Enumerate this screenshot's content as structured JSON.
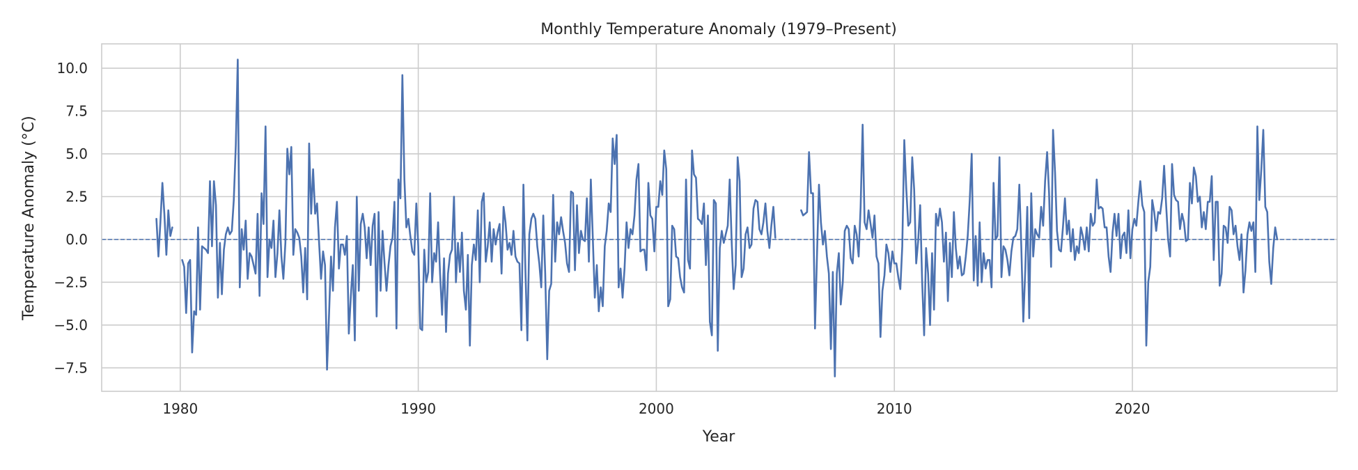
{
  "chart_data": {
    "type": "line",
    "title": "Monthly Temperature Anomaly (1979–Present)",
    "xlabel": "Year",
    "ylabel": "Temperature Anomaly (°C)",
    "xlim": [
      1976.7,
      2028.6
    ],
    "ylim": [
      -8.87,
      11.42
    ],
    "xticks": [
      1980,
      1990,
      2000,
      2010,
      2020
    ],
    "xtick_labels": [
      "1980",
      "1990",
      "2000",
      "2010",
      "2020"
    ],
    "yticks": [
      -7.5,
      -5.0,
      -2.5,
      0.0,
      2.5,
      5.0,
      7.5,
      10.0
    ],
    "ytick_labels": [
      "−7.5",
      "−5.0",
      "−2.5",
      "0.0",
      "2.5",
      "5.0",
      "7.5",
      "10.0"
    ],
    "grid": true,
    "reference_line": {
      "y": 0,
      "style": "dashed"
    },
    "line_color": "#4c72b0",
    "grid_color": "#cccccc",
    "start_year": 1979,
    "frequency": "monthly",
    "values_by_year": {
      "1979": [
        1.2,
        -1.0,
        1.0,
        3.3,
        1.5,
        -0.9,
        1.7,
        0.2,
        0.7,
        null,
        null,
        null
      ],
      "1980": [
        null,
        -1.2,
        -1.6,
        -4.3,
        -1.4,
        -1.2,
        -6.6,
        -4.2,
        -4.4,
        0.7,
        -4.1,
        -0.4
      ],
      "1981": [
        -0.5,
        -0.6,
        -0.8,
        3.4,
        -0.4,
        3.4,
        2.0,
        -3.4,
        -0.2,
        -3.2,
        -0.6,
        0.3
      ],
      "1982": [
        0.7,
        0.3,
        0.5,
        2.3,
        5.5,
        10.5,
        -2.8,
        0.6,
        -0.6,
        1.1,
        -2.3,
        -0.8
      ],
      "1983": [
        -1.0,
        -1.5,
        -2.0,
        1.5,
        -3.3,
        2.7,
        0.9,
        6.6,
        -2.2,
        0.0,
        -0.5,
        1.1
      ],
      "1984": [
        -2.2,
        -0.8,
        1.7,
        -1.0,
        -2.3,
        -0.2,
        5.3,
        3.8,
        5.4,
        -0.9,
        0.6,
        0.4
      ],
      "1985": [
        0.1,
        -1.0,
        -3.1,
        -0.5,
        -3.5,
        5.6,
        1.5,
        4.1,
        1.5,
        2.1,
        -0.2,
        -2.3
      ],
      "1986": [
        -0.7,
        -1.5,
        -7.6,
        -4.5,
        -1.0,
        -3.0,
        0.7,
        2.2,
        -1.7,
        -0.3,
        -0.3,
        -0.9
      ],
      "1987": [
        0.2,
        -5.5,
        -3.3,
        -1.5,
        -5.9,
        2.5,
        -3.0,
        0.9,
        1.5,
        0.7,
        -1.1,
        0.7
      ],
      "1988": [
        -1.5,
        0.8,
        1.5,
        -4.5,
        1.6,
        -3.0,
        0.5,
        -1.4,
        -3.0,
        -1.5,
        -0.4,
        0.1
      ],
      "1989": [
        2.2,
        -5.2,
        3.5,
        2.4,
        9.6,
        3.5,
        0.7,
        1.2,
        0.2,
        -0.7,
        -0.9,
        2.1
      ],
      "1990": [
        -0.4,
        -5.2,
        -5.3,
        -0.6,
        -2.5,
        -1.9,
        2.7,
        -2.5,
        -0.8,
        -1.3,
        1.0,
        -2.0
      ],
      "1991": [
        -4.4,
        -1.1,
        -5.4,
        -2.0,
        -0.9,
        -0.6,
        2.5,
        -2.5,
        -0.2,
        -1.9,
        0.4,
        -3.0
      ],
      "1992": [
        -4.1,
        -0.9,
        -6.2,
        -1.5,
        -0.3,
        -1.2,
        1.7,
        -2.5,
        2.2,
        2.7,
        -1.3,
        -0.4
      ],
      "1993": [
        1.0,
        -1.3,
        0.6,
        -0.3,
        0.4,
        0.9,
        -2.0,
        1.9,
        1.0,
        -0.6,
        -0.2,
        -0.9
      ],
      "1994": [
        0.5,
        -1.0,
        -1.3,
        -1.4,
        -5.3,
        3.2,
        -1.7,
        -5.9,
        0.3,
        1.2,
        1.5,
        1.2
      ],
      "1995": [
        -0.4,
        -1.4,
        -2.8,
        1.4,
        -2.0,
        -7.0,
        -3.0,
        -2.6,
        2.6,
        -1.3,
        1.0,
        0.3
      ],
      "1996": [
        1.3,
        0.5,
        -0.2,
        -1.4,
        -1.9,
        2.8,
        2.7,
        -1.8,
        2.0,
        -0.8,
        0.5,
        0.0
      ],
      "1997": [
        -0.1,
        2.4,
        -1.3,
        3.5,
        0.0,
        -3.4,
        -1.5,
        -4.2,
        -2.8,
        -3.9,
        -0.4,
        0.5
      ],
      "1998": [
        2.1,
        1.6,
        5.9,
        4.4,
        6.1,
        -2.8,
        -1.7,
        -3.4,
        -1.7,
        1.0,
        -0.5,
        0.6
      ],
      "1999": [
        0.3,
        1.4,
        3.5,
        4.4,
        -0.7,
        -0.6,
        -0.6,
        -1.8,
        3.3,
        1.4,
        1.2,
        -0.7
      ],
      "2000": [
        1.9,
        1.9,
        3.4,
        2.6,
        5.2,
        4.1,
        -3.9,
        -3.5,
        0.8,
        0.6,
        -1.0,
        -1.1
      ],
      "2001": [
        -2.2,
        -2.8,
        -3.1,
        3.5,
        -1.2,
        -1.7,
        5.2,
        3.8,
        3.6,
        1.2,
        1.1,
        0.9
      ],
      "2002": [
        2.1,
        -1.5,
        1.4,
        -4.8,
        -5.6,
        2.3,
        2.1,
        -6.5,
        -0.5,
        0.5,
        -0.2,
        0.3
      ],
      "2003": [
        0.8,
        3.5,
        -0.2,
        -2.9,
        -1.5,
        4.8,
        3.4,
        -2.2,
        -1.7,
        0.3,
        0.7,
        -0.5
      ],
      "2004": [
        -0.3,
        1.8,
        2.3,
        2.2,
        0.6,
        0.3,
        1.0,
        2.1,
        0.5,
        -0.5,
        0.8,
        1.9
      ],
      "2005": [
        0.1,
        null,
        null,
        null,
        null,
        null,
        null,
        null,
        null,
        null,
        null,
        null
      ],
      "2006": [
        null,
        1.7,
        1.4,
        1.5,
        1.6,
        5.1,
        2.7,
        2.7,
        -5.2,
        -1.0,
        3.2,
        1.0
      ],
      "2007": [
        -0.3,
        0.5,
        -1.0,
        -2.0,
        -6.4,
        -1.9,
        -8.0,
        -2.0,
        -0.8,
        -3.8,
        -2.5,
        0.5
      ],
      "2008": [
        0.8,
        0.6,
        -1.1,
        -1.4,
        0.8,
        0.3,
        -1.0,
        1.9,
        6.7,
        1.0,
        0.6,
        1.7
      ],
      "2009": [
        0.9,
        0.1,
        1.4,
        -1.0,
        -1.4,
        -5.7,
        -3.0,
        -2.1,
        -0.3,
        -0.8,
        -1.9,
        -0.7
      ],
      "2010": [
        -1.4,
        -1.4,
        -2.2,
        -2.9,
        -0.4,
        5.8,
        3.0,
        0.8,
        1.0,
        4.8,
        2.9,
        -1.4
      ],
      "2011": [
        -0.1,
        2.0,
        -2.4,
        -5.6,
        -0.5,
        -2.0,
        -5.0,
        -0.8,
        -4.1,
        1.5,
        0.8,
        1.8
      ],
      "2012": [
        1.0,
        -1.3,
        0.4,
        -3.6,
        -0.2,
        -2.2,
        1.6,
        -0.5,
        -1.7,
        -1.0,
        -2.1,
        -2.0
      ],
      "2013": [
        -1.0,
        0.2,
        2.3,
        5.0,
        -2.4,
        0.2,
        -2.7,
        1.0,
        -2.5,
        -0.8,
        -1.7,
        -1.2
      ],
      "2014": [
        -1.2,
        -2.8,
        3.3,
        0.0,
        0.2,
        4.8,
        -2.2,
        -0.4,
        -0.6,
        -1.2,
        -2.1,
        -0.7
      ],
      "2015": [
        0.1,
        0.2,
        0.6,
        3.2,
        -0.4,
        -4.8,
        -1.8,
        1.9,
        -4.6,
        2.7,
        -1.0,
        0.6
      ],
      "2016": [
        0.3,
        0.1,
        1.9,
        0.8,
        3.4,
        5.1,
        2.7,
        -1.6,
        6.4,
        3.9,
        0.5,
        -0.6
      ],
      "2017": [
        -0.7,
        0.7,
        2.4,
        0.3,
        1.1,
        -0.7,
        0.6,
        -1.2,
        -0.4,
        -0.8,
        0.7,
        0.2
      ],
      "2018": [
        -0.6,
        0.7,
        -0.7,
        1.5,
        0.8,
        1.0,
        3.5,
        1.8,
        1.9,
        1.8,
        0.7,
        0.7
      ],
      "2019": [
        -1.0,
        -1.9,
        0.4,
        1.5,
        0.2,
        1.5,
        -1.1,
        0.2,
        0.4,
        -0.8,
        1.7,
        -1.1
      ],
      "2020": [
        0.6,
        1.2,
        0.8,
        2.2,
        3.4,
        2.0,
        1.6,
        -6.2,
        -2.5,
        -1.6,
        2.3,
        1.6
      ],
      "2021": [
        0.5,
        1.6,
        1.5,
        2.4,
        4.3,
        2.0,
        0.0,
        -1.0,
        4.4,
        2.6,
        2.3,
        2.2
      ],
      "2022": [
        0.6,
        1.5,
        1.0,
        -0.1,
        0.0,
        3.3,
        2.1,
        4.2,
        3.7,
        2.2,
        2.5,
        0.7
      ],
      "2023": [
        1.6,
        0.6,
        2.2,
        2.2,
        3.7,
        -1.2,
        2.2,
        2.2,
        -2.7,
        -2.0,
        0.8,
        0.7
      ],
      "2024": [
        -0.2,
        1.9,
        1.7,
        0.3,
        0.8,
        -0.4,
        -1.2,
        0.3,
        -3.1,
        -1.8,
        0.3,
        1.0
      ],
      "2025": [
        0.5,
        1.0,
        -1.9,
        6.6,
        2.3,
        4.1,
        6.4,
        1.9,
        1.6,
        -1.3,
        -2.6,
        -0.5
      ],
      "2026": [
        0.7,
        0.0
      ]
    }
  }
}
